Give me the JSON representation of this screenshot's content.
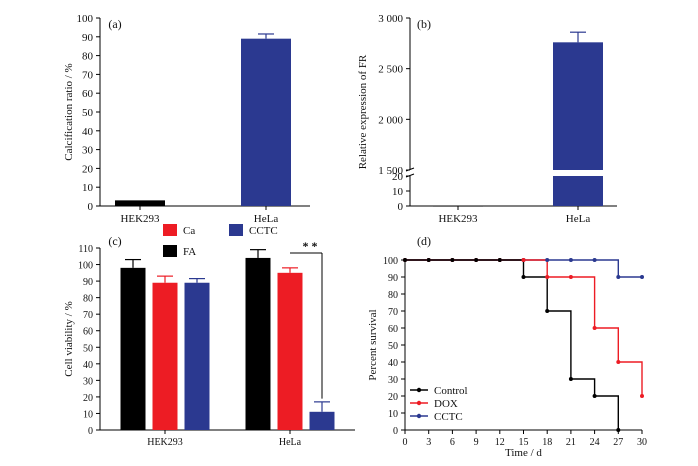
{
  "colors": {
    "blue": "#2b3990",
    "red": "#ed1c24",
    "black": "#000000",
    "axis": "#000000"
  },
  "chart_data": [
    {
      "panel_label": "(a)",
      "type": "bar",
      "categories": [
        "HEK293",
        "HeLa"
      ],
      "values": [
        3,
        89
      ],
      "errors": [
        0.4,
        2.5
      ],
      "bar_colors": [
        "#000000",
        "#2b3990"
      ],
      "ylabel": "Calcification ratio / %",
      "ylim": [
        0,
        100
      ],
      "yticks": [
        0,
        10,
        20,
        30,
        40,
        50,
        60,
        70,
        80,
        90,
        100
      ]
    },
    {
      "panel_label": "(b)",
      "type": "bar",
      "categories": [
        "HEK293",
        "HeLa"
      ],
      "values": [
        0.3,
        2760
      ],
      "errors": [
        0,
        100
      ],
      "bar_colors": [
        "#000000",
        "#2b3990"
      ],
      "ylabel": "Relative expression of FR",
      "axis_break": {
        "lower": [
          0,
          20
        ],
        "upper": [
          1500,
          3000
        ]
      },
      "yticks_lower": [
        0,
        10,
        20
      ],
      "yticks_upper": [
        1500,
        2000,
        2500,
        3000
      ],
      "ytick_labels_upper": [
        "1 500",
        "2 000",
        "2 500",
        "3 000"
      ]
    },
    {
      "panel_label": "(c)",
      "type": "bar",
      "categories": [
        "HEK293",
        "HeLa"
      ],
      "series": [
        {
          "name": "FA",
          "color": "#000000",
          "values": [
            98,
            104
          ],
          "errors": [
            5,
            5
          ]
        },
        {
          "name": "Ca",
          "color": "#ed1c24",
          "values": [
            89,
            95
          ],
          "errors": [
            4,
            3
          ]
        },
        {
          "name": "CCTC",
          "color": "#2b3990",
          "values": [
            89,
            11
          ],
          "errors": [
            2.5,
            6
          ]
        }
      ],
      "ylabel": "Cell viability / %",
      "ylim": [
        0,
        110
      ],
      "yticks": [
        0,
        10,
        20,
        30,
        40,
        50,
        60,
        70,
        80,
        90,
        100,
        110
      ],
      "annotation": "* *",
      "legend_position": "top"
    },
    {
      "panel_label": "(d)",
      "type": "line",
      "step": true,
      "xlabel": "Time / d",
      "ylabel": "Percent survival",
      "xlim": [
        0,
        30
      ],
      "ylim": [
        0,
        100
      ],
      "xticks": [
        0,
        3,
        6,
        9,
        12,
        15,
        18,
        21,
        24,
        27,
        30
      ],
      "yticks": [
        0,
        10,
        20,
        30,
        40,
        50,
        60,
        70,
        80,
        90,
        100
      ],
      "legend_position": "bottom-left",
      "series": [
        {
          "name": "Control",
          "color": "#000000",
          "x": [
            0,
            3,
            6,
            9,
            12,
            15,
            18,
            21,
            24,
            27
          ],
          "y": [
            100,
            100,
            100,
            100,
            100,
            90,
            70,
            30,
            20,
            0
          ]
        },
        {
          "name": "DOX",
          "color": "#ed1c24",
          "x": [
            0,
            3,
            6,
            9,
            12,
            15,
            18,
            21,
            24,
            27,
            30
          ],
          "y": [
            100,
            100,
            100,
            100,
            100,
            100,
            90,
            90,
            60,
            40,
            20
          ]
        },
        {
          "name": "CCTC",
          "color": "#2b3990",
          "x": [
            0,
            3,
            6,
            9,
            12,
            15,
            18,
            21,
            24,
            27,
            30
          ],
          "y": [
            100,
            100,
            100,
            100,
            100,
            100,
            100,
            100,
            100,
            90,
            90
          ]
        }
      ]
    }
  ]
}
